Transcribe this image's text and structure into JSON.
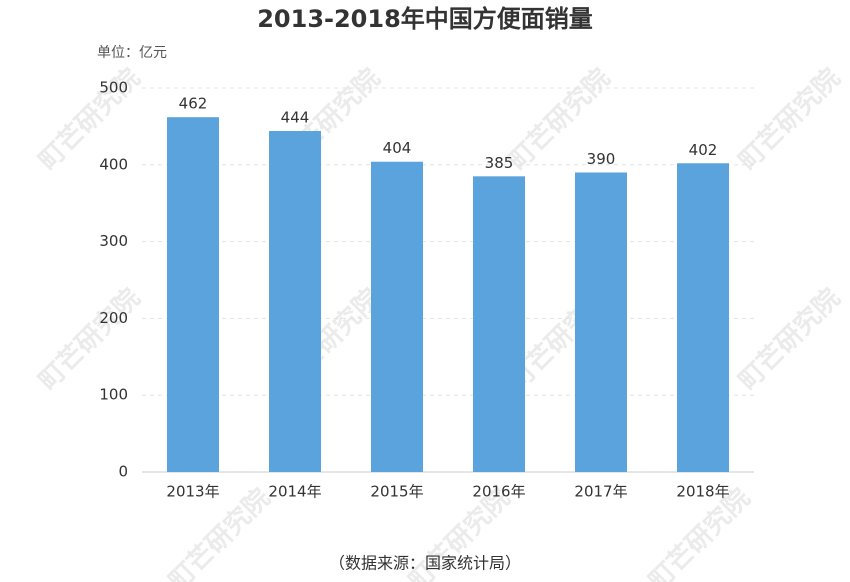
{
  "chart_data": {
    "type": "bar",
    "title": "2013-2018年中国方便面销量",
    "unit_label": "单位：亿元",
    "source": "（数据来源：国家统计局）",
    "watermark": "町芒研究院",
    "categories": [
      "2013年",
      "2014年",
      "2015年",
      "2016年",
      "2017年",
      "2018年"
    ],
    "values": [
      462,
      444,
      404,
      385,
      390,
      402
    ],
    "color": "#5ba3dc",
    "ylim": [
      0,
      500
    ],
    "yticks": [
      0,
      100,
      200,
      300,
      400,
      500
    ],
    "grid": true
  }
}
